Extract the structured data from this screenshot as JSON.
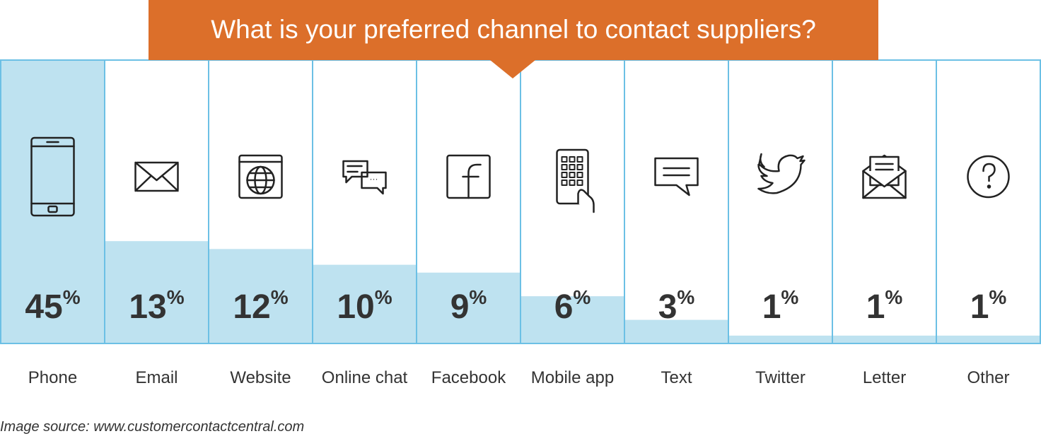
{
  "chart_data": {
    "type": "bar",
    "title": "What is your preferred channel to contact suppliers?",
    "categories": [
      "Phone",
      "Email",
      "Website",
      "Online chat",
      "Facebook",
      "Mobile app",
      "Text",
      "Twitter",
      "Letter",
      "Other"
    ],
    "values": [
      45,
      13,
      12,
      10,
      9,
      6,
      3,
      1,
      1,
      1
    ],
    "value_labels": [
      "45%",
      "13%",
      "12%",
      "10%",
      "9%",
      "6%",
      "3%",
      "1%",
      "1%",
      "1%"
    ],
    "color": "#bee2f0",
    "ylim": [
      0,
      36
    ],
    "source": "Image source: www.customercontactcentral.com"
  }
}
